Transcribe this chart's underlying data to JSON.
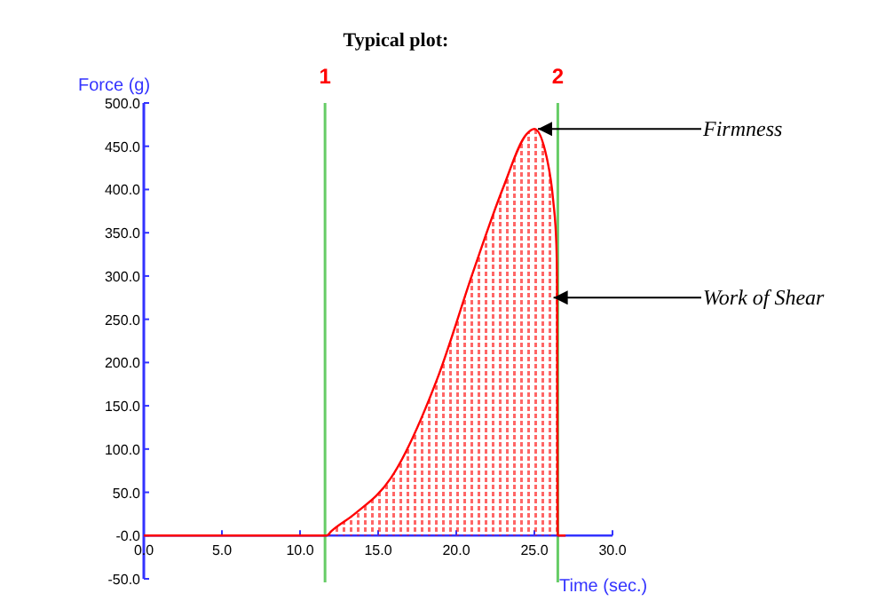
{
  "chart_data": {
    "type": "area",
    "title": "Typical plot:",
    "xlabel": "Time (sec.)",
    "ylabel": "Force   (g)",
    "x": [
      0,
      11.7,
      12.0,
      13.5,
      15.8,
      18.8,
      21.1,
      23.0,
      24.5,
      25.0,
      25.8,
      26.2,
      26.4,
      26.45,
      26.5,
      27.0
    ],
    "series": [
      {
        "color": "#ff0000",
        "values": [
          0,
          0,
          5,
          25,
          66,
          182,
          306,
          402,
          464,
          470,
          436,
          388,
          340,
          300,
          0,
          0
        ]
      }
    ],
    "xlim": [
      0,
      30
    ],
    "xticks": [
      {
        "value": 0,
        "label": "0.0"
      },
      {
        "value": 5,
        "label": "5.0"
      },
      {
        "value": 10,
        "label": "10.0"
      },
      {
        "value": 15,
        "label": "15.0"
      },
      {
        "value": 20,
        "label": "20.0"
      },
      {
        "value": 25,
        "label": "25.0"
      },
      {
        "value": 30,
        "label": "30.0"
      }
    ],
    "ylim": [
      -50,
      500
    ],
    "yticks": [
      {
        "value": -50,
        "label": "-50.0"
      },
      {
        "value": 0,
        "label": "-0.0"
      },
      {
        "value": 50,
        "label": "50.0"
      },
      {
        "value": 100,
        "label": "100.0"
      },
      {
        "value": 150,
        "label": "150.0"
      },
      {
        "value": 200,
        "label": "200.0"
      },
      {
        "value": 250,
        "label": "250.0"
      },
      {
        "value": 300,
        "label": "300.0"
      },
      {
        "value": 350,
        "label": "350.0"
      },
      {
        "value": 400,
        "label": "400.0"
      },
      {
        "value": 450,
        "label": "450.0"
      },
      {
        "value": 500,
        "label": "500.0"
      }
    ],
    "ref_lines": [
      {
        "axis": "x",
        "value": 11.6,
        "color": "#66cc66"
      },
      {
        "axis": "x",
        "value": 26.5,
        "color": "#66cc66"
      }
    ],
    "annotations": [
      {
        "text": "1",
        "x": 11.6,
        "y": 500
      },
      {
        "text": "2",
        "x": 26.5,
        "y": 500
      },
      {
        "text": "Firmness",
        "x": 25.0,
        "y": 470
      },
      {
        "text": "Work of Shear",
        "x": 26.0,
        "y": 275
      }
    ],
    "grid": false
  }
}
